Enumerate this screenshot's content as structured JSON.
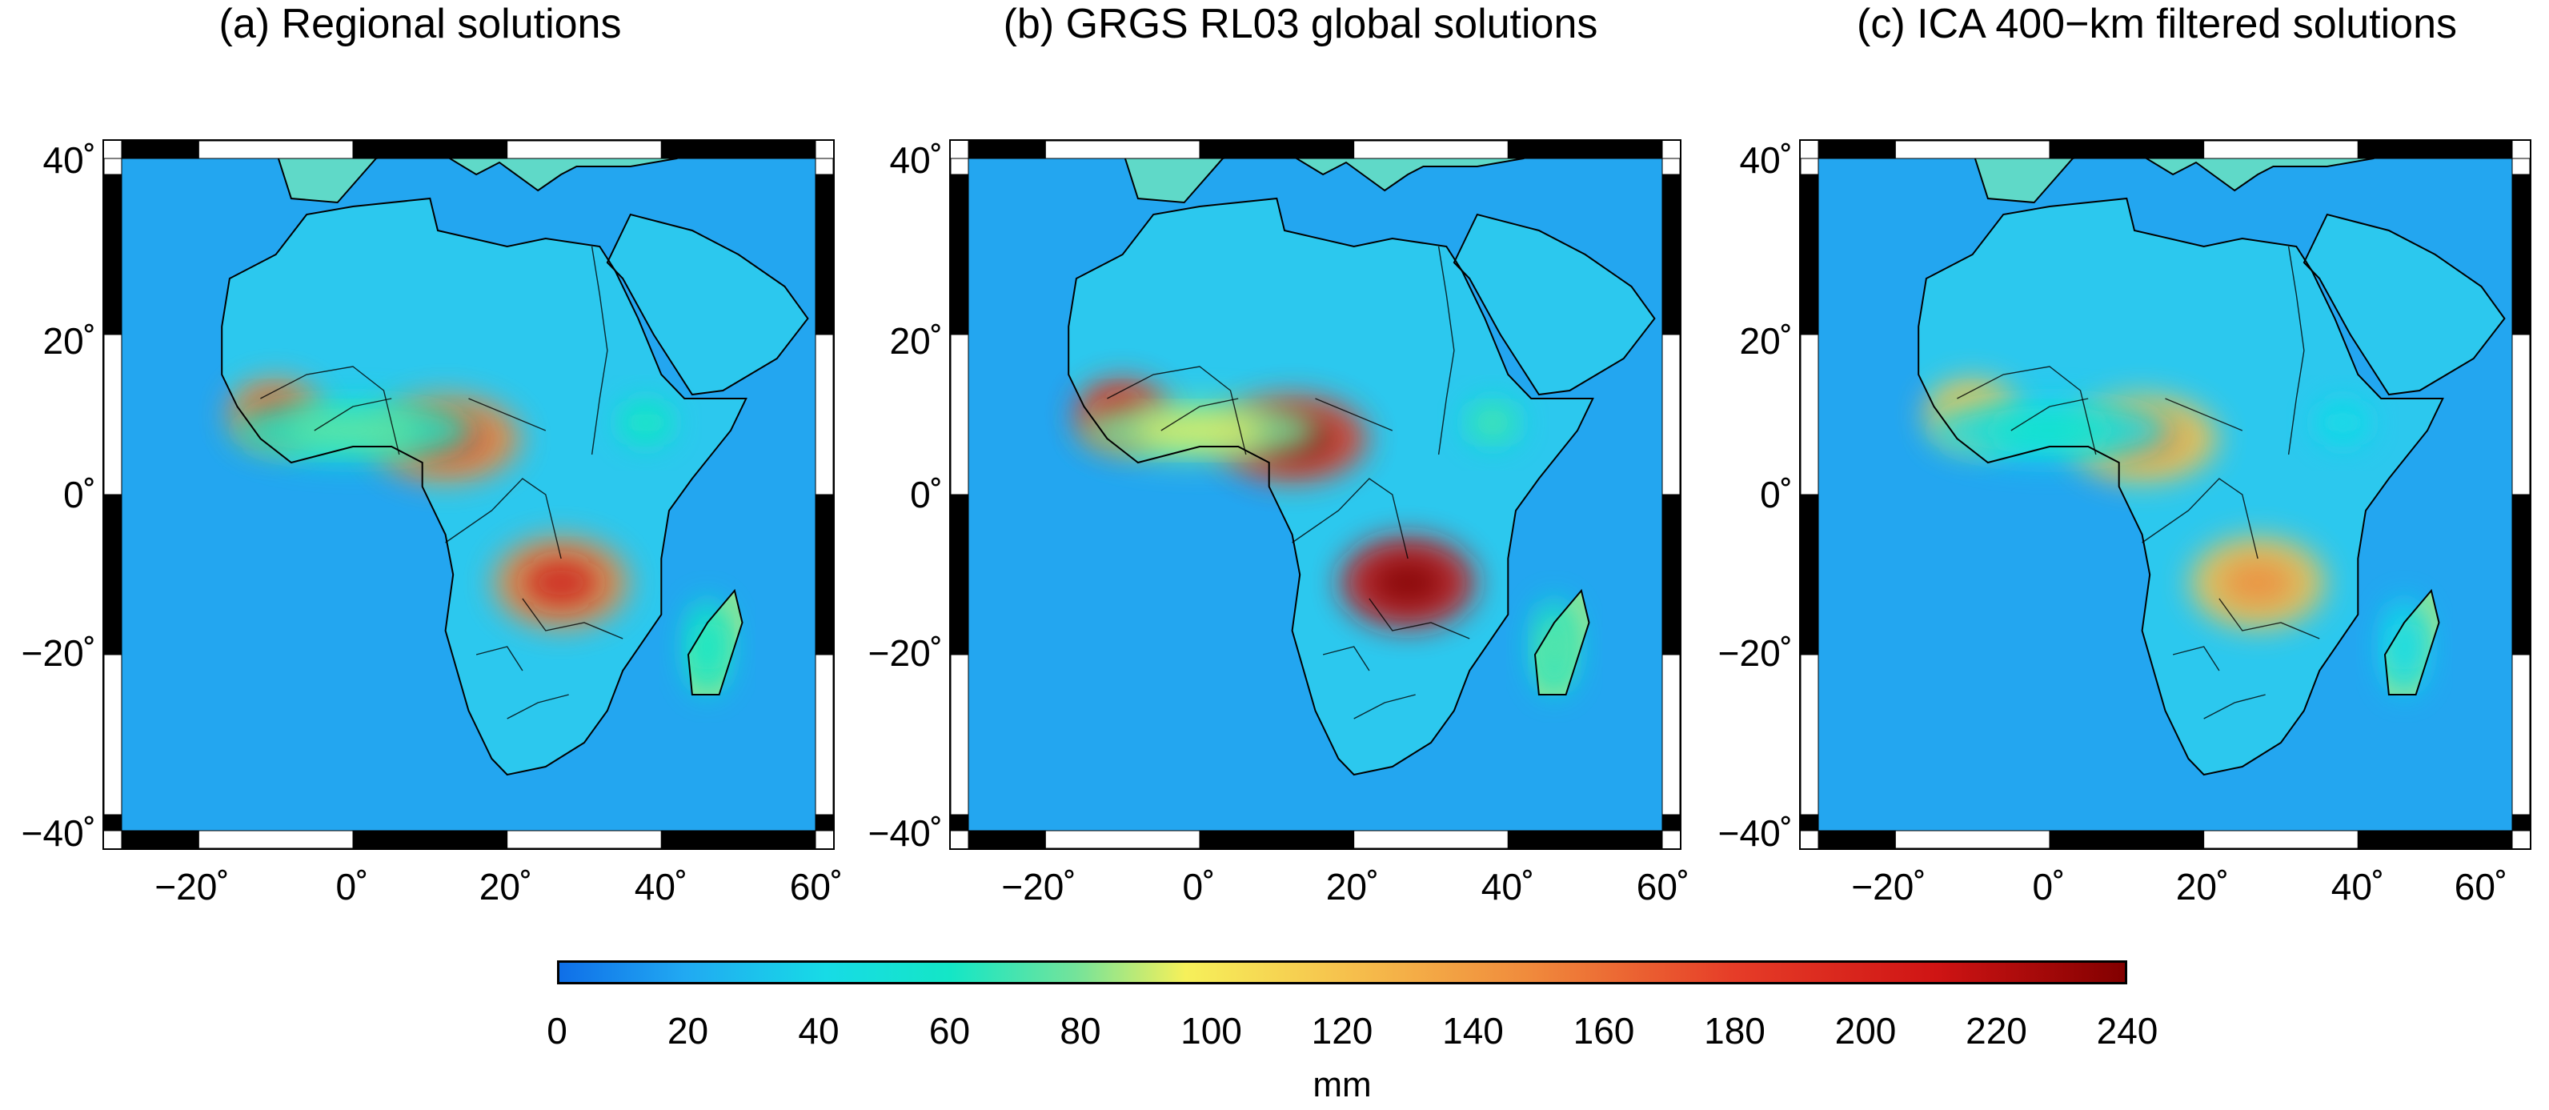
{
  "panels": [
    {
      "title": "(a) Regional solutions",
      "intensity": 1.0
    },
    {
      "title": "(b) GRGS RL03 global solutions",
      "intensity": 1.25
    },
    {
      "title": "(c) ICA 400−km filtered solutions",
      "intensity": 0.8
    }
  ],
  "axes": {
    "lon_range": [
      -30,
      60
    ],
    "lat_range": [
      -42,
      42
    ],
    "y_ticks": [
      "40˚",
      "20˚",
      "0˚",
      "−20˚",
      "−40˚"
    ],
    "x_ticks": [
      "−20˚",
      "0˚",
      "20˚",
      "40˚",
      "60˚"
    ]
  },
  "colorbar": {
    "ticks": [
      "0",
      "20",
      "40",
      "60",
      "80",
      "100",
      "120",
      "140",
      "160",
      "180",
      "200",
      "220",
      "240"
    ],
    "range": [
      0,
      240
    ],
    "unit": "mm"
  },
  "colors": {
    "ocean": "#23a6f0",
    "land": "#2cc8ee",
    "frame_black": "#000000",
    "frame_white": "#ffffff"
  }
}
